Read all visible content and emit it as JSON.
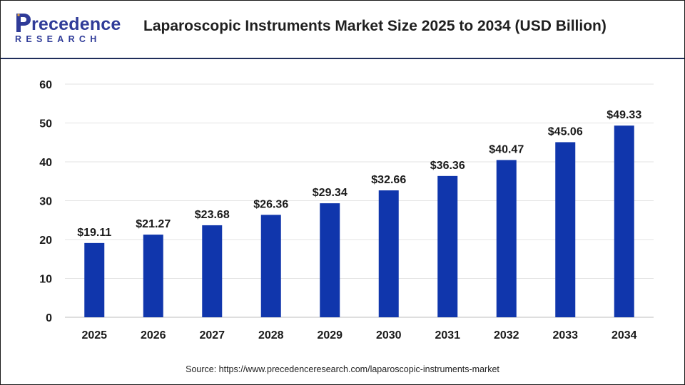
{
  "brand": {
    "name_word": "recedence",
    "name_sub": "RESEARCH",
    "brand_color": "#2f3b98",
    "logo_icon": "precedence-p-logo-icon"
  },
  "chart_data": {
    "type": "bar",
    "title": "Laparoscopic Instruments Market Size 2025 to 2034 (USD Billion)",
    "xlabel": "",
    "ylabel": "",
    "categories": [
      "2025",
      "2026",
      "2027",
      "2028",
      "2029",
      "2030",
      "2031",
      "2032",
      "2033",
      "2034"
    ],
    "values": [
      19.11,
      21.27,
      23.68,
      26.36,
      29.34,
      32.66,
      36.36,
      40.47,
      45.06,
      49.33
    ],
    "data_labels": [
      "$19.11",
      "$21.27",
      "$23.68",
      "$26.36",
      "$29.34",
      "$32.66",
      "$36.36",
      "$40.47",
      "$45.06",
      "$49.33"
    ],
    "yticks": [
      0,
      10,
      20,
      30,
      40,
      50,
      60
    ],
    "ylim": [
      0,
      60
    ],
    "grid": true,
    "legend": "none",
    "bar_color": "#1036ac"
  },
  "source_text": "Source: https://www.precedenceresearch.com/laparoscopic-instruments-market"
}
